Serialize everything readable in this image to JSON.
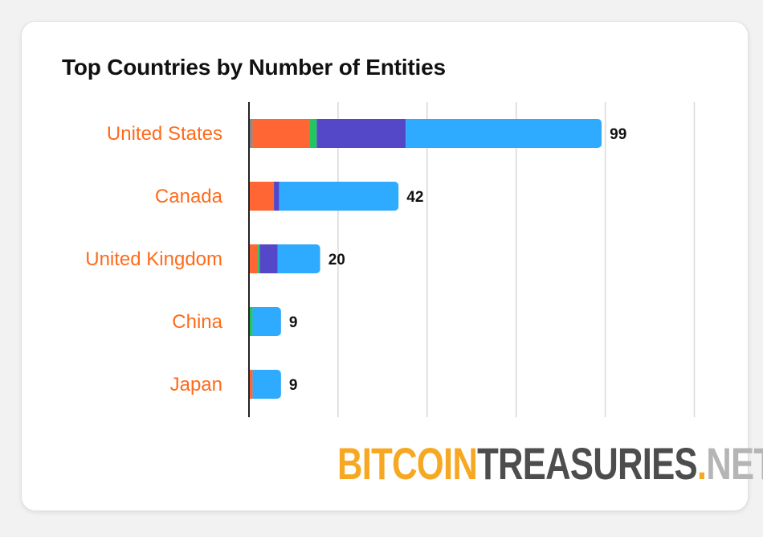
{
  "chart_data": {
    "type": "bar",
    "orientation": "horizontal",
    "stacked": true,
    "title": "Top Countries by Number of Entities",
    "xlim": [
      0,
      125
    ],
    "grid": true,
    "legend": "none",
    "categories": [
      "United States",
      "Canada",
      "United Kingdom",
      "China",
      "Japan"
    ],
    "totals": [
      99,
      42,
      20,
      9,
      9
    ],
    "series": [
      {
        "color": "#8a8a8a",
        "values": [
          1,
          0,
          0,
          0,
          0
        ]
      },
      {
        "color": "#ff6633",
        "values": [
          16,
          7,
          2.5,
          0,
          1
        ]
      },
      {
        "color": "#22c55e",
        "values": [
          2,
          0,
          0.5,
          1,
          0
        ]
      },
      {
        "color": "#5548c8",
        "values": [
          25,
          1.5,
          5,
          0,
          0
        ]
      },
      {
        "color": "#2eaaff",
        "values": [
          55,
          33.5,
          12,
          8,
          8
        ]
      }
    ]
  },
  "colors": {
    "category_label": "#ff6a1a",
    "total_label": "#111111",
    "gridline": "#d9d9d9",
    "axis": "#222222"
  },
  "watermark": {
    "part1": "BITCOIN",
    "part2": "TREASURIES",
    "part3": ".",
    "part4": "NET"
  }
}
